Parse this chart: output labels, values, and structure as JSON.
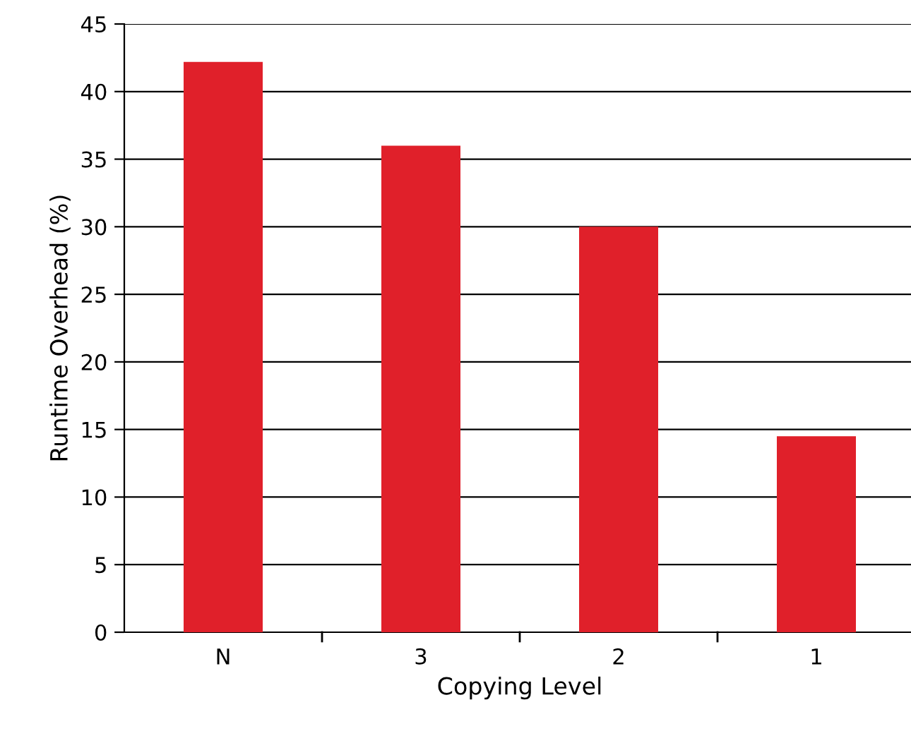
{
  "chart_data": {
    "type": "bar",
    "xlabel": "Copying Level",
    "ylabel": "Runtime Overhead (%)",
    "categories": [
      "N",
      "3",
      "2",
      "1"
    ],
    "values": [
      42.2,
      36.0,
      30.0,
      14.5
    ],
    "color": "#e0202a",
    "ylim": [
      0,
      45
    ],
    "yticks": [
      0,
      5,
      10,
      15,
      20,
      25,
      30,
      35,
      40,
      45
    ],
    "grid": "y"
  }
}
